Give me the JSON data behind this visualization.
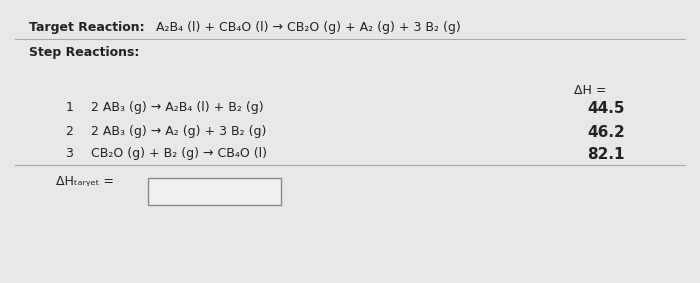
{
  "bg_color": "#e8e8e8",
  "title_label": "Target Reaction:",
  "step_label": "Step Reactions:",
  "dH_header": "ΔH =",
  "steps": [
    {
      "num": "1",
      "reaction": "2 AB₃ (g) → A₂B₄ (l) + B₂ (g)",
      "dH": "44.5"
    },
    {
      "num": "2",
      "reaction": "2 AB₃ (g) → A₂ (g) + 3 B₂ (g)",
      "dH": "46.2"
    },
    {
      "num": "3",
      "reaction": "CB₂O (g) + B₂ (g) → CB₄O (l)",
      "dH": "82.1"
    }
  ],
  "target_label": "ΔHₜₐᵣᵧₑₜ =",
  "title_reaction": "A₂B₄ (l) + CB₄O (l) → CB₂O (g) + A₂ (g) + 3 B₂ (g)",
  "text_color": "#222222",
  "line_color": "#aaaaaa",
  "box_edge_color": "#888888",
  "box_face_color": "#f0f0f0"
}
